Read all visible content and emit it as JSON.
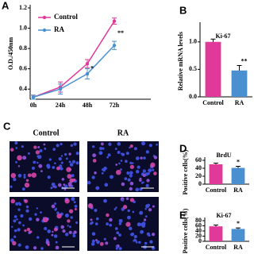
{
  "chart_data": [
    {
      "type": "line",
      "label": "A",
      "ylabel": "O.D./450nm",
      "categories": [
        "0h",
        "24h",
        "48h",
        "72h"
      ],
      "series": [
        {
          "name": "Control",
          "color": "#e0399a",
          "values": [
            0.32,
            0.42,
            0.65,
            1.07
          ],
          "errors": [
            0.02,
            0.05,
            0.04,
            0.03
          ]
        },
        {
          "name": "RA",
          "color": "#4a90d0",
          "values": [
            0.32,
            0.4,
            0.55,
            0.83
          ],
          "errors": [
            0.02,
            0.05,
            0.05,
            0.04
          ]
        }
      ],
      "ylim": [
        0.3,
        1.2
      ],
      "yticks": [
        0.4,
        0.6,
        0.8,
        {
          "value": 1,
          "label": "1.0"
        },
        1.2
      ],
      "annotations": [
        {
          "text": "*",
          "category": "48h"
        },
        {
          "text": "**",
          "category": "72h"
        }
      ]
    },
    {
      "type": "bar",
      "label": "B",
      "title": "Ki-67",
      "ylabel": "Relative mRNA levels",
      "categories": [
        "Control",
        "RA"
      ],
      "values": [
        1.0,
        0.48
      ],
      "errors": [
        0.05,
        0.09
      ],
      "colors": [
        "#e0399a",
        "#4a90d0"
      ],
      "ylim": [
        0,
        1.3
      ],
      "yticks": [
        {
          "value": 0,
          "label": "0.0"
        },
        0.5,
        {
          "value": 1,
          "label": "1.0"
        }
      ],
      "annotations": [
        {
          "text": "**",
          "category": "RA"
        }
      ]
    },
    {
      "type": "bar",
      "label": "D",
      "title": "BrdU",
      "ylabel": "Positive cells(%)",
      "categories": [
        "Control",
        "RA"
      ],
      "values": [
        50,
        41
      ],
      "errors": [
        3,
        4
      ],
      "colors": [
        "#e0399a",
        "#4a90d0"
      ],
      "ylim": [
        0,
        60
      ],
      "yticks": [
        0,
        20,
        40,
        60
      ],
      "annotations": [
        {
          "text": "*",
          "category": "RA"
        }
      ]
    },
    {
      "type": "bar",
      "label": "E",
      "title": "Ki-67",
      "ylabel": "Positive cells(%)",
      "categories": [
        "Control",
        "RA"
      ],
      "values": [
        58,
        48
      ],
      "errors": [
        5,
        4
      ],
      "colors": [
        "#e0399a",
        "#4a90d0"
      ],
      "ylim": [
        0,
        80
      ],
      "yticks": [
        0,
        20,
        40,
        60,
        80
      ],
      "annotations": [
        {
          "text": "*",
          "category": "RA"
        }
      ]
    }
  ],
  "image_panel": {
    "label": "C",
    "columns": [
      "Control",
      "RA"
    ]
  }
}
